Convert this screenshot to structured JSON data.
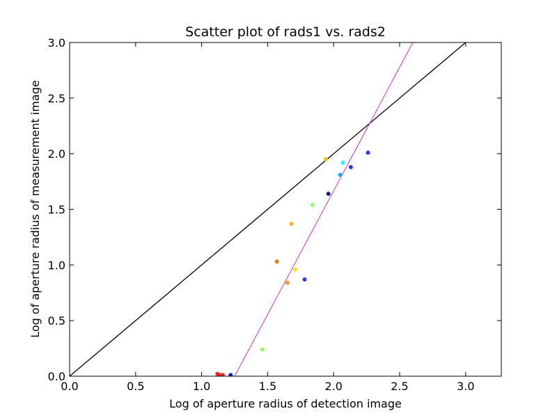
{
  "chart_data": {
    "type": "scatter",
    "title": "Scatter plot of rads1 vs. rads2",
    "xlabel": "Log of aperture radius of detection image",
    "ylabel": "Log of aperture radius of measurement image",
    "xlim": [
      0.0,
      3.27
    ],
    "ylim": [
      0.0,
      3.0
    ],
    "xticks": [
      "0.0",
      "0.5",
      "1.0",
      "1.5",
      "2.0",
      "2.5",
      "3.0"
    ],
    "yticks": [
      "0.0",
      "0.5",
      "1.0",
      "1.5",
      "2.0",
      "2.5",
      "3.0"
    ],
    "grid": false,
    "series": [
      {
        "points": [
          {
            "x": 1.12,
            "y": 0.02,
            "color": "#e8271f"
          },
          {
            "x": 1.14,
            "y": 0.01,
            "color": "#e8271f"
          },
          {
            "x": 1.16,
            "y": 0.01,
            "color": "#e8271f"
          },
          {
            "x": 1.22,
            "y": 0.01,
            "color": "#1a1aa8"
          },
          {
            "x": 1.46,
            "y": 0.24,
            "color": "#9aff5a"
          },
          {
            "x": 1.57,
            "y": 1.03,
            "color": "#f07a1a"
          },
          {
            "x": 1.65,
            "y": 0.84,
            "color": "#ff9a20"
          },
          {
            "x": 1.68,
            "y": 1.37,
            "color": "#ffb020"
          },
          {
            "x": 1.71,
            "y": 0.96,
            "color": "#ffe030"
          },
          {
            "x": 1.78,
            "y": 0.87,
            "color": "#2a3af0"
          },
          {
            "x": 1.84,
            "y": 1.54,
            "color": "#8aff6a"
          },
          {
            "x": 1.94,
            "y": 1.95,
            "color": "#ffc000"
          },
          {
            "x": 1.96,
            "y": 1.64,
            "color": "#201c80"
          },
          {
            "x": 2.05,
            "y": 1.81,
            "color": "#20a0ff"
          },
          {
            "x": 2.07,
            "y": 1.92,
            "color": "#30f0ff"
          },
          {
            "x": 2.13,
            "y": 1.88,
            "color": "#2a3af0"
          },
          {
            "x": 2.26,
            "y": 2.01,
            "color": "#2a3af0"
          }
        ]
      }
    ],
    "lines": [
      {
        "kind": "identity",
        "color": "#000000",
        "from": [
          0.0,
          0.0
        ],
        "to": [
          3.0,
          3.0
        ]
      },
      {
        "kind": "fit",
        "color": "#c020c0",
        "from": [
          1.25,
          0.0
        ],
        "to": [
          2.6,
          3.0
        ]
      }
    ]
  }
}
